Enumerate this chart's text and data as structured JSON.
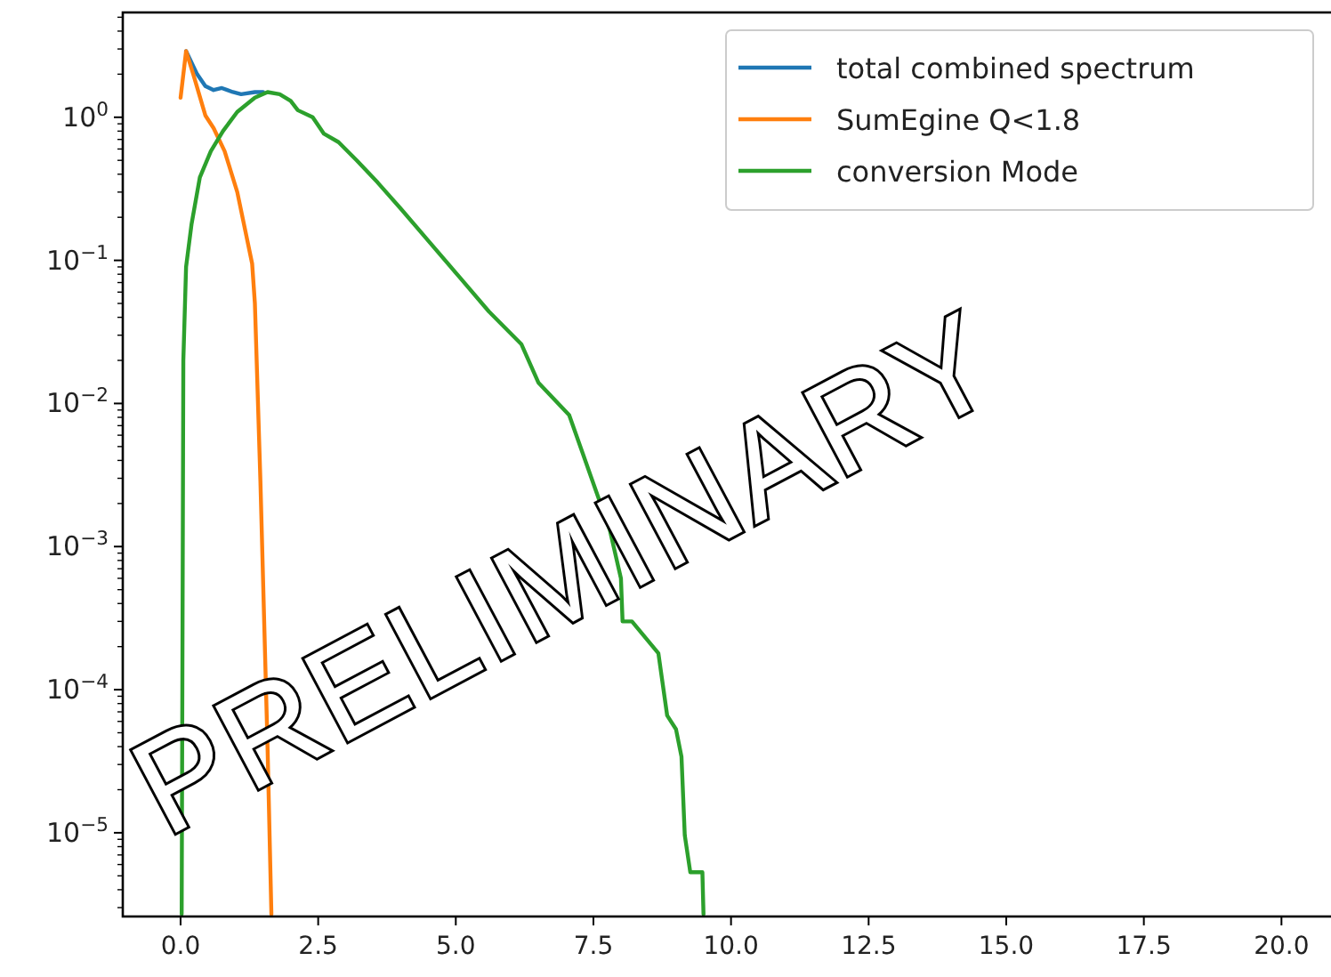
{
  "chart_data": {
    "type": "line",
    "log": "y",
    "legend": "top right",
    "grid": false,
    "xlim": [
      -1.05,
      20.9
    ],
    "xticks": [
      {
        "value": 0,
        "label": "0.0"
      },
      {
        "value": 2.5,
        "label": "2.5"
      },
      {
        "value": 5,
        "label": "5.0"
      },
      {
        "value": 7.5,
        "label": "7.5"
      },
      {
        "value": 10,
        "label": "10.0"
      },
      {
        "value": 12.5,
        "label": "12.5"
      },
      {
        "value": 15,
        "label": "15.0"
      },
      {
        "value": 17.5,
        "label": "17.5"
      },
      {
        "value": 20,
        "label": "20.0"
      }
    ],
    "ylim": [
      2.6e-06,
      5.4
    ],
    "yticks": [
      {
        "value": 1e-05,
        "label": "10$^{−5}$"
      },
      {
        "value": 0.0001,
        "label": "10$^{−4}$"
      },
      {
        "value": 0.001,
        "label": "10$^{−3}$"
      },
      {
        "value": 0.01,
        "label": "10$^{−2}$"
      },
      {
        "value": 0.1,
        "label": "10$^{−1}$"
      },
      {
        "value": 1,
        "label": "10$^{0}$"
      },
      {
        "value": 3e-06,
        "label": null
      },
      {
        "value": 4e-06,
        "label": null
      },
      {
        "value": 5e-06,
        "label": null
      },
      {
        "value": 6e-06,
        "label": null
      },
      {
        "value": 7e-06,
        "label": null
      },
      {
        "value": 8e-06,
        "label": null
      },
      {
        "value": 9e-06,
        "label": null
      },
      {
        "value": 2e-05,
        "label": null
      },
      {
        "value": 3e-05,
        "label": null
      },
      {
        "value": 4e-05,
        "label": null
      },
      {
        "value": 5e-05,
        "label": null
      },
      {
        "value": 6e-05,
        "label": null
      },
      {
        "value": 7e-05,
        "label": null
      },
      {
        "value": 8e-05,
        "label": null
      },
      {
        "value": 9e-05,
        "label": null
      },
      {
        "value": 0.0002,
        "label": null
      },
      {
        "value": 0.0003,
        "label": null
      },
      {
        "value": 0.0004,
        "label": null
      },
      {
        "value": 0.0005,
        "label": null
      },
      {
        "value": 0.0006,
        "label": null
      },
      {
        "value": 0.0007,
        "label": null
      },
      {
        "value": 0.0008,
        "label": null
      },
      {
        "value": 0.0009,
        "label": null
      },
      {
        "value": 0.002,
        "label": null
      },
      {
        "value": 0.003,
        "label": null
      },
      {
        "value": 0.004,
        "label": null
      },
      {
        "value": 0.005,
        "label": null
      },
      {
        "value": 0.006,
        "label": null
      },
      {
        "value": 0.007,
        "label": null
      },
      {
        "value": 0.008,
        "label": null
      },
      {
        "value": 0.009,
        "label": null
      },
      {
        "value": 0.02,
        "label": null
      },
      {
        "value": 0.03,
        "label": null
      },
      {
        "value": 0.04,
        "label": null
      },
      {
        "value": 0.05,
        "label": null
      },
      {
        "value": 0.06,
        "label": null
      },
      {
        "value": 0.07,
        "label": null
      },
      {
        "value": 0.08,
        "label": null
      },
      {
        "value": 0.09,
        "label": null
      },
      {
        "value": 0.2,
        "label": null
      },
      {
        "value": 0.3,
        "label": null
      },
      {
        "value": 0.4,
        "label": null
      },
      {
        "value": 0.5,
        "label": null
      },
      {
        "value": 0.6,
        "label": null
      },
      {
        "value": 0.7,
        "label": null
      },
      {
        "value": 0.8,
        "label": null
      },
      {
        "value": 0.9,
        "label": null
      },
      {
        "value": 2,
        "label": null
      },
      {
        "value": 3,
        "label": null
      },
      {
        "value": 4,
        "label": null
      },
      {
        "value": 5,
        "label": null
      }
    ],
    "annotations": [
      "PRELIMINARY"
    ],
    "series": [
      {
        "name": "total combined spectrum",
        "color": "#1f77b4",
        "x": [
          0.1,
          0.3,
          0.45,
          0.6,
          0.75,
          0.95,
          1.1,
          1.35,
          1.5
        ],
        "values": [
          2.9,
          2.0,
          1.65,
          1.55,
          1.6,
          1.5,
          1.45,
          1.5,
          1.5
        ]
      },
      {
        "name": "SumEgine Q<1.8",
        "color": "#ff7f0e",
        "x": [
          0.0,
          0.1,
          0.23,
          0.45,
          0.6,
          0.8,
          1.03,
          1.3,
          1.35,
          1.45,
          1.58,
          1.65
        ],
        "values": [
          1.37,
          2.9,
          2.0,
          1.03,
          0.84,
          0.58,
          0.3,
          0.095,
          0.05,
          0.0029,
          4e-05,
          2.7e-06
        ]
      },
      {
        "name": "conversion Mode",
        "color": "#2ca02c",
        "x": [
          0.02,
          0.05,
          0.1,
          0.2,
          0.35,
          0.55,
          0.77,
          1.03,
          1.35,
          1.58,
          1.8,
          2.0,
          2.13,
          2.4,
          2.6,
          2.87,
          3.2,
          3.58,
          4.0,
          4.48,
          5.06,
          5.6,
          6.19,
          6.5,
          7.06,
          7.48,
          7.8,
          8.0,
          8.03,
          8.2,
          8.68,
          8.84,
          9.0,
          9.1,
          9.16,
          9.26,
          9.48,
          9.5
        ],
        "values": [
          2.7e-06,
          0.02,
          0.09,
          0.18,
          0.38,
          0.58,
          0.8,
          1.09,
          1.37,
          1.5,
          1.45,
          1.3,
          1.12,
          1.0,
          0.77,
          0.67,
          0.5,
          0.35,
          0.23,
          0.14,
          0.077,
          0.044,
          0.026,
          0.014,
          0.0083,
          0.0029,
          0.0013,
          0.0006,
          0.0003,
          0.0003,
          0.00018,
          6.6e-05,
          5.3e-05,
          3.4e-05,
          9.6e-06,
          5.3e-06,
          5.3e-06,
          2.7e-06
        ]
      }
    ]
  }
}
